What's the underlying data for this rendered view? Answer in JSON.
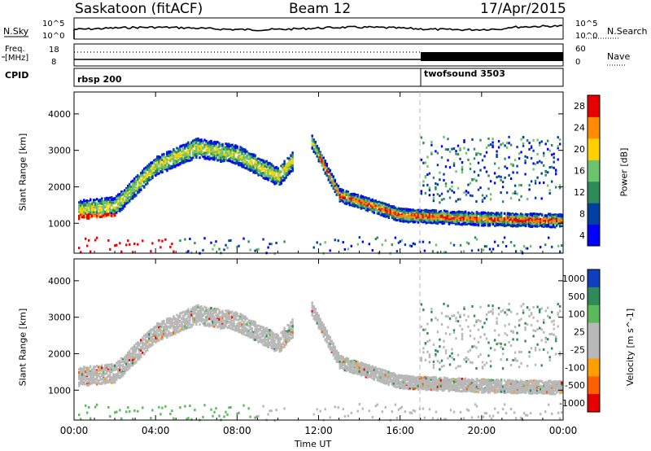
{
  "header": {
    "station": "Saskatoon (fitACF)",
    "beam": "Beam 12",
    "date": "17/Apr/2015"
  },
  "noise_panel": {
    "left_label": "N.Sky",
    "left_ticks": [
      "10^5",
      "10^0"
    ],
    "right_ticks": [
      "10^5",
      "10^0"
    ],
    "right_label": "N.Search"
  },
  "freq_panel": {
    "left_label_1": "Freq.",
    "left_label_2": "[MHz]",
    "left_ticks": [
      "18",
      "8"
    ],
    "right_ticks": [
      "60",
      "0"
    ],
    "right_label": "Nave"
  },
  "cpid_panel": {
    "label": "CPID",
    "segments": [
      {
        "name": "rbsp 200",
        "start": "00:00"
      },
      {
        "name": "twofsound 3503",
        "start": "17:00"
      }
    ]
  },
  "chart_data": [
    {
      "type": "heatmap",
      "title": "Power",
      "ylabel": "Slant Range [km]",
      "ylim": [
        180,
        4600
      ],
      "yticks": [
        "1000",
        "2000",
        "3000",
        "4000"
      ],
      "colorbar_label": "Power [dB]",
      "colorbar_ticks": [
        "4",
        "8",
        "12",
        "16",
        "20",
        "24",
        "28"
      ],
      "colors": [
        "#0000ff",
        "#0040a0",
        "#2e8a57",
        "#6cc36c",
        "#ffd000",
        "#ff8c00",
        "#e60000"
      ],
      "band_points": [
        {
          "t": 0.2,
          "r": 1400
        },
        {
          "t": 2.0,
          "r": 1500
        },
        {
          "t": 4.0,
          "r": 2600
        },
        {
          "t": 6.0,
          "r": 3100
        },
        {
          "t": 8.0,
          "r": 2900
        },
        {
          "t": 10.0,
          "r": 2300
        },
        {
          "t": 11.6,
          "r": 3300
        },
        {
          "t": 13.0,
          "r": 1800
        },
        {
          "t": 16.0,
          "r": 1250
        },
        {
          "t": 20.0,
          "r": 1150
        },
        {
          "t": 23.9,
          "r": 1100
        }
      ]
    },
    {
      "type": "heatmap",
      "title": "Velocity",
      "ylabel": "Slant Range [km]",
      "ylim": [
        180,
        4600
      ],
      "yticks": [
        "1000",
        "2000",
        "3000",
        "4000"
      ],
      "colorbar_label": "Velocity [m s^-1]",
      "colorbar_ticks": [
        "1000",
        "500",
        "100",
        "25",
        "-25",
        "-100",
        "-500",
        "-1000"
      ],
      "colors": [
        "#1040c0",
        "#2e8a57",
        "#5ab95a",
        "#b8b8b8",
        "#b8b8b8",
        "#ffa000",
        "#ff6000",
        "#e60000"
      ],
      "xlabel": "Time UT",
      "xticks": [
        "00:00",
        "04:00",
        "08:00",
        "12:00",
        "16:00",
        "20:00",
        "00:00"
      ],
      "xlim_hours": [
        0,
        24
      ]
    }
  ]
}
